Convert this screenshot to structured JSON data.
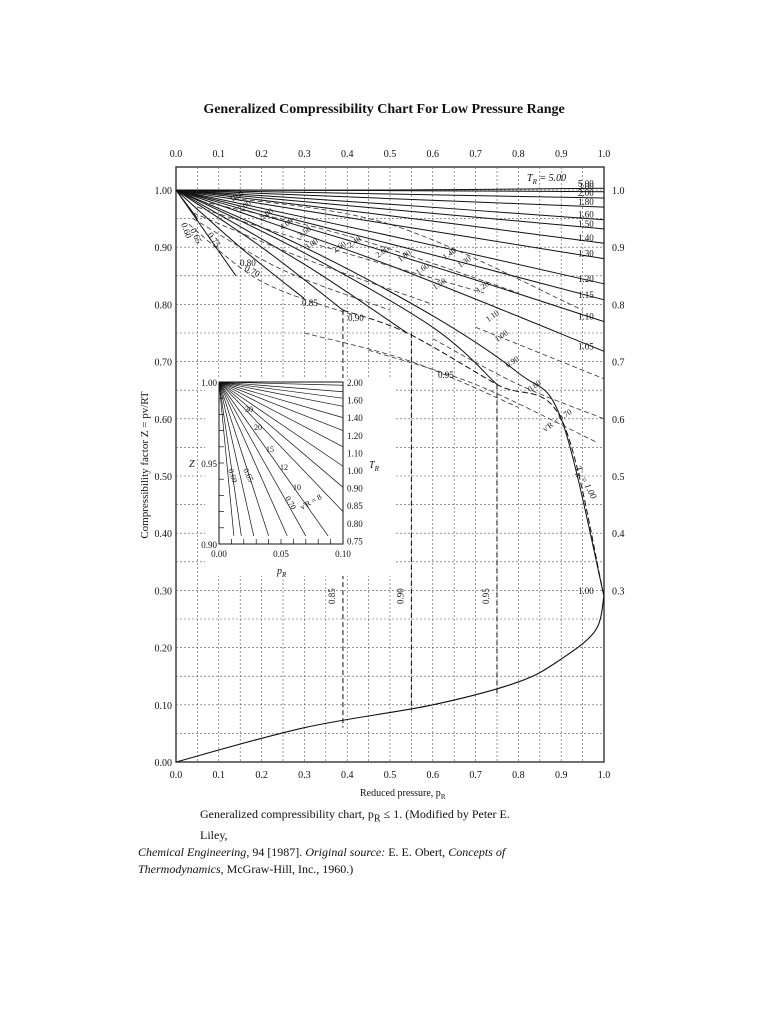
{
  "title": "Generalized Compressibility Chart For Low Pressure Range",
  "caption": {
    "line1": "Generalized compressibility chart, p",
    "line1_sub": "R",
    "line1_rest": " ≤ 1. (Modified by Peter E. Liley,",
    "line2_italic": "Chemical Engineering",
    "line2_rest": ", 94 [1987]. ",
    "line2_italic2": "Original source:",
    "line2_rest2": " E. E. Obert, ",
    "line2_italic3": "Concepts of",
    "line3_italic": "Thermodynamics",
    "line3_rest": ", McGraw-Hill, Inc., 1960.)"
  },
  "chart_data": {
    "type": "line",
    "xlabel": "Reduced pressure, p",
    "xlabel_sub": "R",
    "ylabel": "Compressibility factor Z = pv/RT",
    "xlim": [
      0,
      1.0
    ],
    "ylim": [
      0,
      1.05
    ],
    "x_ticks_bottom": [
      "0.0",
      "0.1",
      "0.2",
      "0.3",
      "0.4",
      "0.5",
      "0.6",
      "0.7",
      "0.8",
      "0.9",
      "1.0"
    ],
    "x_ticks_top": [
      "0.0",
      "0.1",
      "0.2",
      "0.3",
      "0.4",
      "0.5",
      "0.6",
      "0.7",
      "0.8",
      "0.9",
      "1.0"
    ],
    "y_ticks_left": [
      "0.00",
      "0.10",
      "0.20",
      "0.30",
      "0.40",
      "0.50",
      "0.60",
      "0.70",
      "0.80",
      "0.90",
      "1.00"
    ],
    "y_ticks_right": [
      "0.3",
      "0.4",
      "0.5",
      "0.6",
      "0.7",
      "0.8",
      "0.9",
      "1.0"
    ],
    "grid": true,
    "isotherms": [
      {
        "label": "5.00",
        "Tr": 5.0,
        "points": [
          [
            0,
            1.0
          ],
          [
            0.5,
            1.0
          ],
          [
            1.0,
            1.003
          ]
        ]
      },
      {
        "label": "3.00",
        "Tr": 3.0,
        "points": [
          [
            0,
            1.0
          ],
          [
            0.5,
            0.999
          ],
          [
            1.0,
            0.997
          ]
        ]
      },
      {
        "label": "2.00",
        "Tr": 2.0,
        "points": [
          [
            0,
            1.0
          ],
          [
            0.5,
            0.993
          ],
          [
            1.0,
            0.986
          ]
        ]
      },
      {
        "label": "1.80",
        "Tr": 1.8,
        "points": [
          [
            0,
            1.0
          ],
          [
            0.5,
            0.985
          ],
          [
            1.0,
            0.97
          ]
        ]
      },
      {
        "label": "1.60",
        "Tr": 1.6,
        "points": [
          [
            0,
            1.0
          ],
          [
            0.5,
            0.975
          ],
          [
            1.0,
            0.948
          ]
        ]
      },
      {
        "label": "1.50",
        "Tr": 1.5,
        "points": [
          [
            0,
            1.0
          ],
          [
            0.5,
            0.966
          ],
          [
            1.0,
            0.932
          ]
        ]
      },
      {
        "label": "1.40",
        "Tr": 1.4,
        "points": [
          [
            0,
            1.0
          ],
          [
            0.5,
            0.955
          ],
          [
            1.0,
            0.907
          ]
        ]
      },
      {
        "label": "1.30",
        "Tr": 1.3,
        "points": [
          [
            0,
            1.0
          ],
          [
            0.5,
            0.94
          ],
          [
            1.0,
            0.88
          ]
        ]
      },
      {
        "label": "1.20",
        "Tr": 1.2,
        "points": [
          [
            0,
            1.0
          ],
          [
            0.5,
            0.92
          ],
          [
            1.0,
            0.836
          ]
        ]
      },
      {
        "label": "1.15",
        "Tr": 1.15,
        "points": [
          [
            0,
            1.0
          ],
          [
            0.5,
            0.906
          ],
          [
            1.0,
            0.808
          ]
        ]
      },
      {
        "label": "1.10",
        "Tr": 1.1,
        "points": [
          [
            0,
            1.0
          ],
          [
            0.5,
            0.89
          ],
          [
            1.0,
            0.77
          ]
        ]
      },
      {
        "label": "1.05",
        "Tr": 1.05,
        "points": [
          [
            0,
            1.0
          ],
          [
            0.5,
            0.868
          ],
          [
            1.0,
            0.718
          ]
        ]
      },
      {
        "label": "1.00",
        "Tr": 1.0,
        "points": [
          [
            0,
            1.0
          ],
          [
            0.3,
            0.9
          ],
          [
            0.6,
            0.78
          ],
          [
            0.8,
            0.68
          ],
          [
            0.9,
            0.6
          ],
          [
            1.0,
            0.29
          ]
        ]
      },
      {
        "label": "0.95",
        "Tr": 0.95,
        "points": [
          [
            0,
            1.0
          ],
          [
            0.3,
            0.89
          ],
          [
            0.6,
            0.76
          ],
          [
            0.75,
            0.66
          ]
        ]
      },
      {
        "label": "0.90",
        "Tr": 0.9,
        "points": [
          [
            0,
            1.0
          ],
          [
            0.3,
            0.87
          ],
          [
            0.54,
            0.75
          ]
        ]
      },
      {
        "label": "0.85",
        "Tr": 0.85,
        "points": [
          [
            0,
            1.0
          ],
          [
            0.2,
            0.9
          ],
          [
            0.39,
            0.79
          ]
        ]
      },
      {
        "label": "0.80",
        "Tr": 0.8,
        "points": [
          [
            0,
            1.0
          ],
          [
            0.15,
            0.9
          ],
          [
            0.3,
            0.81
          ]
        ]
      },
      {
        "label": "0.70",
        "Tr": 0.7,
        "points": [
          [
            0,
            1.0
          ],
          [
            0.14,
            0.85
          ]
        ]
      },
      {
        "label": "0.60",
        "Tr": 0.6,
        "points": [
          [
            0,
            1.0
          ],
          [
            0.05,
            0.95
          ]
        ]
      }
    ],
    "saturation_liquid": {
      "points": [
        [
          0,
          0
        ],
        [
          0.3,
          0.06
        ],
        [
          0.6,
          0.1
        ],
        [
          0.8,
          0.14
        ],
        [
          0.9,
          0.18
        ],
        [
          0.98,
          0.23
        ],
        [
          1.0,
          0.29
        ]
      ]
    },
    "ideal_volume_labels": [
      "v'R = 0.70",
      "0.80",
      "0.90",
      "1.00",
      "1.10",
      "1.20",
      "1.30",
      "1.40",
      "1.50",
      "1.60",
      "1.80",
      "2.00",
      "2.40",
      "2.60",
      "3.00",
      "3.50",
      "4.00",
      "5.00",
      "7.00",
      "10.0"
    ],
    "vertical_labels": [
      "0.85",
      "0.90",
      "0.95"
    ],
    "top_label": "T",
    "top_label_sub": "R",
    "top_label_value": " = 5.00",
    "tr_100_label": "T",
    "tr_100_sub": "R",
    "tr_100_value": " = 1.00",
    "inset": {
      "xlim": [
        0,
        0.1
      ],
      "ylim": [
        0.9,
        1.0
      ],
      "x_ticks": [
        "0.00",
        "0.05",
        "0.10"
      ],
      "y_ticks": [
        "1.00",
        "0.95",
        "0.90"
      ],
      "ylabel": "Z",
      "xlabel": "p",
      "xlabel_sub": "R",
      "right_ticks": [
        "2.00",
        "1.60",
        "1.40",
        "1.20",
        "1.10",
        "1.00",
        "0.90",
        "0.85",
        "0.80",
        "0.75"
      ],
      "right_label": "T",
      "right_label_sub": "R",
      "curve_labels": [
        "0.60",
        "0.65",
        "0.70",
        "v'R = 8",
        "10",
        "12",
        "15",
        "20",
        "30"
      ]
    }
  }
}
